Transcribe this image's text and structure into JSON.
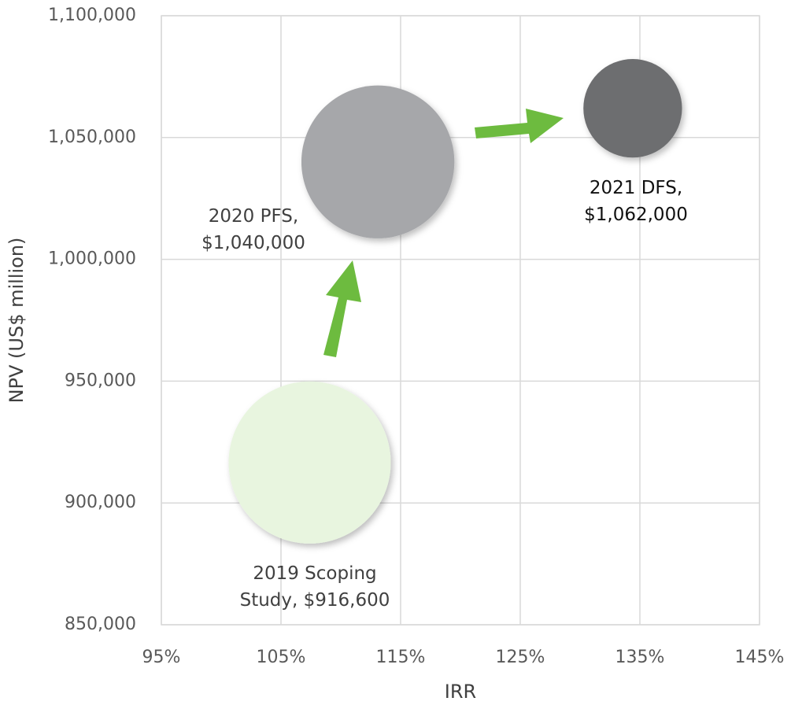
{
  "chart_data": {
    "type": "bubble",
    "x_label": "IRR",
    "y_label": "NPV (US$ million)",
    "x": [
      107.4,
      113.1,
      134.4
    ],
    "values": [
      916600,
      1040000,
      1062000
    ],
    "sizes": [
      100,
      89,
      37
    ],
    "colors": [
      "#e8f5df",
      "#a6a7aa",
      "#6d6e70"
    ],
    "point_names": [
      "2019 Scoping Study,",
      "2020 PFS,",
      "2021 DFS,"
    ],
    "value_labels": [
      "$916,600",
      "$1,040,000",
      "$1,062,000"
    ],
    "xlim": [
      95,
      145
    ],
    "xticks": [
      {
        "value": 95,
        "label": "95%"
      },
      {
        "value": 105,
        "label": "105%"
      },
      {
        "value": 115,
        "label": "115%"
      },
      {
        "value": 125,
        "label": "125%"
      },
      {
        "value": 135,
        "label": "135%"
      },
      {
        "value": 145,
        "label": "145%"
      }
    ],
    "ylim": [
      850000,
      1100000
    ],
    "yticks": [
      {
        "value": 850000,
        "label": "850,000"
      },
      {
        "value": 900000,
        "label": "900,000"
      },
      {
        "value": 950000,
        "label": "950,000"
      },
      {
        "value": 1000000,
        "label": "1,000,000"
      },
      {
        "value": 1050000,
        "label": "1,050,000"
      },
      {
        "value": 1100000,
        "label": "1,100,000"
      }
    ],
    "grid": true
  }
}
